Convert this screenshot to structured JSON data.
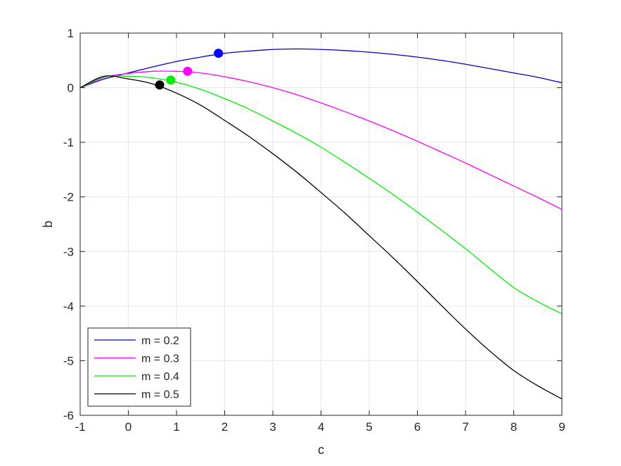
{
  "chart_data": {
    "type": "line",
    "xlabel": "c",
    "ylabel": "b",
    "xlim": [
      -1,
      9
    ],
    "ylim": [
      -6,
      1
    ],
    "xticks": [
      -1,
      0,
      1,
      2,
      3,
      4,
      5,
      6,
      7,
      8,
      9
    ],
    "yticks": [
      -6,
      -5,
      -4,
      -3,
      -2,
      -1,
      0,
      1
    ],
    "grid": true,
    "legend_position": "bottom-left",
    "series": [
      {
        "name": "m = 0.2",
        "color": "#0000cc",
        "marker_color": "#0000ff",
        "x": [
          -1,
          -0.5,
          0,
          0.5,
          1,
          1.5,
          2,
          2.5,
          3,
          3.5,
          4,
          4.5,
          5,
          5.5,
          6,
          6.5,
          7,
          7.5,
          8,
          8.5,
          9
        ],
        "y": [
          0.0,
          0.16,
          0.27,
          0.38,
          0.48,
          0.56,
          0.63,
          0.67,
          0.7,
          0.71,
          0.7,
          0.68,
          0.65,
          0.61,
          0.56,
          0.5,
          0.43,
          0.35,
          0.27,
          0.19,
          0.09
        ],
        "marker": {
          "x": 1.87,
          "y": 0.63
        }
      },
      {
        "name": "m = 0.3",
        "color": "#ff00ff",
        "marker_color": "#ff00ff",
        "x": [
          -1,
          -0.5,
          0,
          0.5,
          1,
          1.5,
          2,
          2.5,
          3,
          3.5,
          4,
          4.5,
          5,
          5.5,
          6,
          6.5,
          7,
          7.5,
          8,
          8.5,
          9
        ],
        "y": [
          0.0,
          0.19,
          0.26,
          0.3,
          0.3,
          0.27,
          0.2,
          0.11,
          0.0,
          -0.13,
          -0.28,
          -0.44,
          -0.61,
          -0.79,
          -0.98,
          -1.18,
          -1.38,
          -1.59,
          -1.8,
          -2.01,
          -2.23
        ],
        "marker": {
          "x": 1.23,
          "y": 0.3
        }
      },
      {
        "name": "m = 0.4",
        "color": "#00ee00",
        "marker_color": "#00ee00",
        "x": [
          -1,
          -0.5,
          0,
          0.5,
          1,
          1.5,
          2,
          2.5,
          3,
          3.5,
          4,
          4.5,
          5,
          5.5,
          6,
          6.5,
          7,
          7.5,
          8,
          8.5,
          9
        ],
        "y": [
          0.0,
          0.2,
          0.21,
          0.18,
          0.1,
          -0.03,
          -0.2,
          -0.39,
          -0.61,
          -0.84,
          -1.09,
          -1.37,
          -1.66,
          -1.96,
          -2.28,
          -2.61,
          -2.95,
          -3.31,
          -3.66,
          -3.92,
          -4.14
        ],
        "marker": {
          "x": 0.88,
          "y": 0.14
        }
      },
      {
        "name": "m = 0.5",
        "color": "#000000",
        "marker_color": "#000000",
        "x": [
          -1,
          -0.5,
          0,
          0.5,
          1,
          1.5,
          2,
          2.5,
          3,
          3.5,
          4,
          4.5,
          5,
          5.5,
          6,
          6.5,
          7,
          7.5,
          8,
          8.5,
          9
        ],
        "y": [
          0.0,
          0.21,
          0.16,
          0.07,
          -0.1,
          -0.32,
          -0.6,
          -0.89,
          -1.21,
          -1.55,
          -1.92,
          -2.3,
          -2.71,
          -3.12,
          -3.55,
          -3.99,
          -4.42,
          -4.82,
          -5.18,
          -5.46,
          -5.7
        ],
        "marker": {
          "x": 0.65,
          "y": 0.05
        }
      }
    ]
  }
}
